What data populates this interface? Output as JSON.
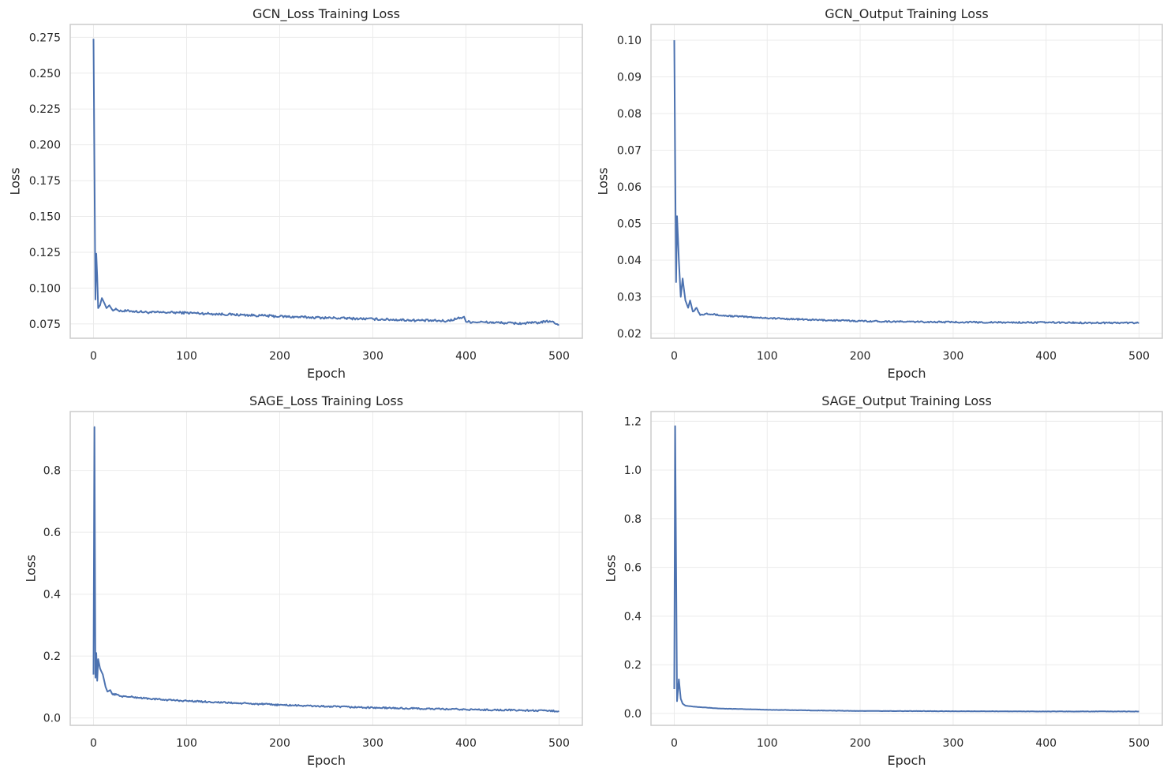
{
  "colors": {
    "line": "#4c72b0",
    "grid": "#ebebeb",
    "frame": "#cccccc",
    "text": "#262626"
  },
  "chart_data": [
    {
      "type": "line",
      "title": "GCN_Loss Training Loss",
      "xlabel": "Epoch",
      "ylabel": "Loss",
      "xlim": [
        -25,
        525
      ],
      "ylim": [
        0.065,
        0.284
      ],
      "xticks": [
        0,
        100,
        200,
        300,
        400,
        500
      ],
      "yticks": [
        0.075,
        0.1,
        0.125,
        0.15,
        0.175,
        0.2,
        0.225,
        0.25,
        0.275
      ],
      "ytick_labels": [
        "0.075",
        "0.100",
        "0.125",
        "0.150",
        "0.175",
        "0.200",
        "0.225",
        "0.250",
        "0.275"
      ],
      "grid": true,
      "series": [
        {
          "points": [
            [
              0,
              0.274
            ],
            [
              2,
              0.092
            ],
            [
              3,
              0.124
            ],
            [
              4,
              0.108
            ],
            [
              5,
              0.086
            ],
            [
              7,
              0.088
            ],
            [
              9,
              0.093
            ],
            [
              12,
              0.089
            ],
            [
              14,
              0.086
            ],
            [
              17,
              0.088
            ],
            [
              20,
              0.085
            ],
            [
              25,
              0.085
            ],
            [
              30,
              0.084
            ],
            [
              40,
              0.084
            ],
            [
              60,
              0.083
            ],
            [
              80,
              0.083
            ],
            [
              100,
              0.0828
            ],
            [
              120,
              0.0822
            ],
            [
              150,
              0.0815
            ],
            [
              180,
              0.0808
            ],
            [
              200,
              0.0802
            ],
            [
              230,
              0.0796
            ],
            [
              260,
              0.0791
            ],
            [
              300,
              0.0784
            ],
            [
              340,
              0.0776
            ],
            [
              380,
              0.077
            ],
            [
              398,
              0.08
            ],
            [
              400,
              0.0765
            ],
            [
              420,
              0.0762
            ],
            [
              440,
              0.0757
            ],
            [
              460,
              0.0753
            ],
            [
              480,
              0.076
            ],
            [
              490,
              0.077
            ],
            [
              500,
              0.0745
            ]
          ],
          "noise": 0.0008
        }
      ]
    },
    {
      "type": "line",
      "title": "GCN_Output Training Loss",
      "xlabel": "Epoch",
      "ylabel": "Loss",
      "xlim": [
        -25,
        525
      ],
      "ylim": [
        0.0187,
        0.1043
      ],
      "xticks": [
        0,
        100,
        200,
        300,
        400,
        500
      ],
      "yticks": [
        0.02,
        0.03,
        0.04,
        0.05,
        0.06,
        0.07,
        0.08,
        0.09,
        0.1
      ],
      "ytick_labels": [
        "0.02",
        "0.03",
        "0.04",
        "0.05",
        "0.06",
        "0.07",
        "0.08",
        "0.09",
        "0.10"
      ],
      "grid": true,
      "series": [
        {
          "points": [
            [
              0,
              0.1
            ],
            [
              2,
              0.034
            ],
            [
              3,
              0.052
            ],
            [
              5,
              0.04
            ],
            [
              7,
              0.03
            ],
            [
              9,
              0.035
            ],
            [
              12,
              0.029
            ],
            [
              15,
              0.027
            ],
            [
              17,
              0.029
            ],
            [
              20,
              0.026
            ],
            [
              24,
              0.027
            ],
            [
              28,
              0.025
            ],
            [
              35,
              0.0255
            ],
            [
              50,
              0.0249
            ],
            [
              80,
              0.0245
            ],
            [
              100,
              0.0242
            ],
            [
              150,
              0.0237
            ],
            [
              200,
              0.0234
            ],
            [
              250,
              0.0232
            ],
            [
              300,
              0.0231
            ],
            [
              350,
              0.023
            ],
            [
              400,
              0.023
            ],
            [
              450,
              0.0229
            ],
            [
              500,
              0.0229
            ]
          ],
          "noise": 0.0002
        }
      ]
    },
    {
      "type": "line",
      "title": "SAGE_Loss Training Loss",
      "xlabel": "Epoch",
      "ylabel": "Loss",
      "xlim": [
        -25,
        525
      ],
      "ylim": [
        -0.024,
        0.99
      ],
      "xticks": [
        0,
        100,
        200,
        300,
        400,
        500
      ],
      "yticks": [
        0.0,
        0.2,
        0.4,
        0.6,
        0.8
      ],
      "ytick_labels": [
        "0.0",
        "0.2",
        "0.4",
        "0.6",
        "0.8"
      ],
      "grid": true,
      "series": [
        {
          "points": [
            [
              0,
              0.14
            ],
            [
              1,
              0.94
            ],
            [
              2,
              0.13
            ],
            [
              3,
              0.21
            ],
            [
              4,
              0.12
            ],
            [
              5,
              0.19
            ],
            [
              7,
              0.16
            ],
            [
              10,
              0.14
            ],
            [
              13,
              0.1
            ],
            [
              15,
              0.085
            ],
            [
              18,
              0.09
            ],
            [
              20,
              0.078
            ],
            [
              25,
              0.075
            ],
            [
              30,
              0.07
            ],
            [
              40,
              0.068
            ],
            [
              60,
              0.062
            ],
            [
              80,
              0.058
            ],
            [
              100,
              0.055
            ],
            [
              130,
              0.051
            ],
            [
              160,
              0.047
            ],
            [
              200,
              0.042
            ],
            [
              250,
              0.037
            ],
            [
              300,
              0.033
            ],
            [
              350,
              0.03
            ],
            [
              400,
              0.027
            ],
            [
              450,
              0.025
            ],
            [
              500,
              0.022
            ]
          ],
          "noise": 0.0025
        }
      ]
    },
    {
      "type": "line",
      "title": "SAGE_Output Training Loss",
      "xlabel": "Epoch",
      "ylabel": "Loss",
      "xlim": [
        -25,
        525
      ],
      "ylim": [
        -0.049,
        1.24
      ],
      "xticks": [
        0,
        100,
        200,
        300,
        400,
        500
      ],
      "yticks": [
        0.0,
        0.2,
        0.4,
        0.6,
        0.8,
        1.0,
        1.2
      ],
      "ytick_labels": [
        "0.0",
        "0.2",
        "0.4",
        "0.6",
        "0.8",
        "1.0",
        "1.2"
      ],
      "grid": true,
      "series": [
        {
          "points": [
            [
              0,
              0.1
            ],
            [
              1,
              1.18
            ],
            [
              3,
              0.05
            ],
            [
              5,
              0.14
            ],
            [
              7,
              0.06
            ],
            [
              9,
              0.04
            ],
            [
              12,
              0.032
            ],
            [
              20,
              0.028
            ],
            [
              30,
              0.025
            ],
            [
              50,
              0.02
            ],
            [
              100,
              0.015
            ],
            [
              150,
              0.012
            ],
            [
              200,
              0.01
            ],
            [
              300,
              0.009
            ],
            [
              400,
              0.008
            ],
            [
              500,
              0.008
            ]
          ],
          "noise": 0.0006
        }
      ]
    }
  ]
}
